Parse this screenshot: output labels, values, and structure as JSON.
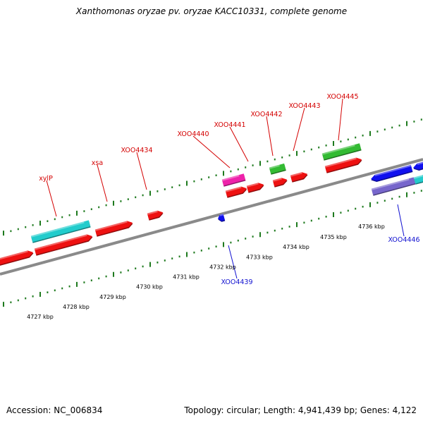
{
  "title": "Xanthomonas oryzae pv. oryzae KACC10331, complete genome",
  "footer": {
    "accession": "Accession: NC_006834",
    "topology": "Topology: circular; Length: 4,941,439 bp; Genes: 4,122"
  },
  "colors": {
    "forward_label": "#d40000",
    "reverse_label": "#1010d0",
    "backbone": "#8a8a8a",
    "ticks": "#1e7a1e"
  },
  "axis_labels": [
    "4727 kbp",
    "4728 kbp",
    "4729 kbp",
    "4730 kbp",
    "4731 kbp",
    "4732 kbp",
    "4733 kbp",
    "4734 kbp",
    "4735 kbp",
    "4736 kbp"
  ],
  "gene_labels": [
    {
      "text": "xylP",
      "strand": "forward"
    },
    {
      "text": "xsa",
      "strand": "forward"
    },
    {
      "text": "XOO4434",
      "strand": "forward"
    },
    {
      "text": "XOO4440",
      "strand": "forward"
    },
    {
      "text": "XOO4441",
      "strand": "forward"
    },
    {
      "text": "XOO4442",
      "strand": "forward"
    },
    {
      "text": "XOO4443",
      "strand": "forward"
    },
    {
      "text": "XOO4445",
      "strand": "forward"
    },
    {
      "text": "XOO4439",
      "strand": "reverse"
    },
    {
      "text": "XOO4446",
      "strand": "reverse"
    }
  ],
  "features": [
    {
      "name": "forward-cds-1",
      "color": "#ee1111"
    },
    {
      "name": "forward-cds-2",
      "color": "#ee1111"
    },
    {
      "name": "forward-cds-3",
      "color": "#ee1111"
    },
    {
      "name": "forward-cds-4",
      "color": "#ee1111"
    },
    {
      "name": "forward-cds-5",
      "color": "#ee1111"
    },
    {
      "name": "forward-cds-6",
      "color": "#ee1111"
    },
    {
      "name": "forward-cds-7",
      "color": "#ee1111"
    },
    {
      "name": "forward-cds-8",
      "color": "#ee1111"
    },
    {
      "name": "forward-cds-9",
      "color": "#ee1111"
    },
    {
      "name": "xylP-feature",
      "color": "#22cccc"
    },
    {
      "name": "XOO4440-feature",
      "color": "#ee22aa"
    },
    {
      "name": "XOO4442-feature",
      "color": "#33bb33"
    },
    {
      "name": "XOO4445-feature",
      "color": "#33bb33"
    },
    {
      "name": "XOO4439-cds",
      "color": "#1010ee"
    },
    {
      "name": "reverse-cds-1",
      "color": "#1010ee"
    },
    {
      "name": "reverse-cds-2",
      "color": "#1010ee"
    },
    {
      "name": "reverse-feature-1",
      "color": "#7766cc"
    },
    {
      "name": "reverse-feature-2",
      "color": "#22cccc"
    }
  ]
}
